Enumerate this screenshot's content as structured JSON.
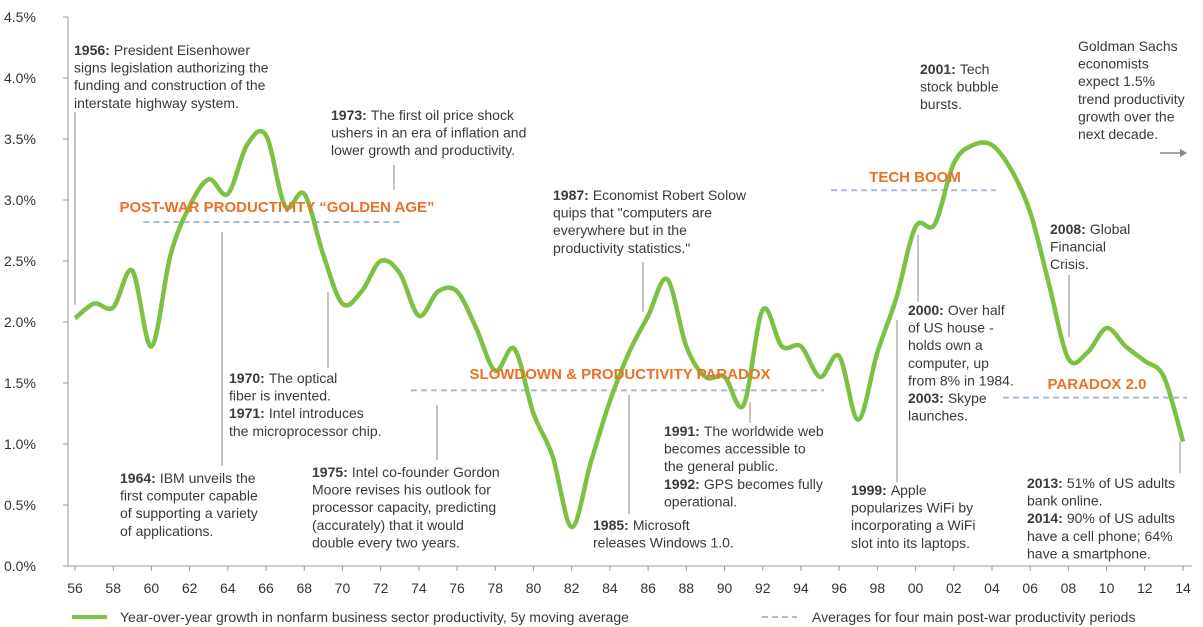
{
  "chart_data": {
    "type": "line",
    "x": [
      1956,
      1957,
      1958,
      1959,
      1960,
      1961,
      1962,
      1963,
      1964,
      1965,
      1966,
      1967,
      1968,
      1969,
      1970,
      1971,
      1972,
      1973,
      1974,
      1975,
      1976,
      1977,
      1978,
      1979,
      1980,
      1981,
      1982,
      1983,
      1984,
      1985,
      1986,
      1987,
      1988,
      1989,
      1990,
      1991,
      1992,
      1993,
      1994,
      1995,
      1996,
      1997,
      1998,
      1999,
      2000,
      2001,
      2002,
      2003,
      2004,
      2005,
      2006,
      2007,
      2008,
      2009,
      2010,
      2011,
      2012,
      2013,
      2014
    ],
    "series": [
      {
        "name": "Year-over-year growth in nonfarm business sector productivity, 5y moving average",
        "color": "#7cc242",
        "values": [
          2.03,
          2.15,
          2.12,
          2.42,
          1.8,
          2.55,
          2.95,
          3.17,
          3.05,
          3.45,
          3.53,
          2.95,
          3.05,
          2.55,
          2.15,
          2.25,
          2.5,
          2.4,
          2.05,
          2.25,
          2.25,
          1.95,
          1.6,
          1.78,
          1.25,
          0.9,
          0.32,
          0.85,
          1.35,
          1.75,
          2.05,
          2.35,
          1.8,
          1.55,
          1.55,
          1.32,
          2.1,
          1.8,
          1.8,
          1.55,
          1.72,
          1.2,
          1.75,
          2.2,
          2.78,
          2.8,
          3.3,
          3.45,
          3.45,
          3.25,
          2.9,
          2.3,
          1.7,
          1.75,
          1.95,
          1.8,
          1.68,
          1.55,
          1.02
        ]
      }
    ],
    "averages_name": "Averages for four main post-war productivity periods",
    "averages_color": "#a9b9da",
    "averages": [
      {
        "label": "POST-WAR PRODUCTIVITY “GOLDEN AGE”",
        "start": 1960,
        "end": 1973,
        "value": 2.82
      },
      {
        "label": "SLOWDOWN & PRODUCTIVITY PARADOX",
        "start": 1974,
        "end": 1995,
        "value": 1.44
      },
      {
        "label": "TECH BOOM",
        "start": 1996,
        "end": 2004,
        "value": 3.08
      },
      {
        "label": "PARADOX 2.0",
        "start": 2005,
        "end": 2014,
        "value": 1.38
      }
    ],
    "xlim": [
      1956,
      2014
    ],
    "ylim": [
      0,
      4.5
    ],
    "xticks": [
      {
        "value": 1956,
        "label": "56"
      },
      {
        "value": 1958,
        "label": "58"
      },
      {
        "value": 1960,
        "label": "60"
      },
      {
        "value": 1962,
        "label": "62"
      },
      {
        "value": 1964,
        "label": "64"
      },
      {
        "value": 1966,
        "label": "66"
      },
      {
        "value": 1968,
        "label": "68"
      },
      {
        "value": 1970,
        "label": "70"
      },
      {
        "value": 1972,
        "label": "72"
      },
      {
        "value": 1974,
        "label": "74"
      },
      {
        "value": 1976,
        "label": "76"
      },
      {
        "value": 1978,
        "label": "78"
      },
      {
        "value": 1980,
        "label": "80"
      },
      {
        "value": 1982,
        "label": "82"
      },
      {
        "value": 1984,
        "label": "84"
      },
      {
        "value": 1986,
        "label": "86"
      },
      {
        "value": 1988,
        "label": "88"
      },
      {
        "value": 1990,
        "label": "90"
      },
      {
        "value": 1992,
        "label": "92"
      },
      {
        "value": 1994,
        "label": "94"
      },
      {
        "value": 1996,
        "label": "96"
      },
      {
        "value": 1998,
        "label": "98"
      },
      {
        "value": 2000,
        "label": "00"
      },
      {
        "value": 2002,
        "label": "02"
      },
      {
        "value": 2004,
        "label": "04"
      },
      {
        "value": 2006,
        "label": "06"
      },
      {
        "value": 2008,
        "label": "08"
      },
      {
        "value": 2010,
        "label": "10"
      },
      {
        "value": 2012,
        "label": "12"
      },
      {
        "value": 2014,
        "label": "14"
      }
    ],
    "yticks": [
      {
        "value": 0,
        "label": "0.0%"
      },
      {
        "value": 0.5,
        "label": "0.5%"
      },
      {
        "value": 1,
        "label": "1.0%"
      },
      {
        "value": 1.5,
        "label": "1.5%"
      },
      {
        "value": 2,
        "label": "2.0%"
      },
      {
        "value": 2.5,
        "label": "2.5%"
      },
      {
        "value": 3,
        "label": "3.0%"
      },
      {
        "value": 3.5,
        "label": "3.5%"
      },
      {
        "value": 4,
        "label": "4.0%"
      },
      {
        "value": 4.5,
        "label": "4.5%"
      }
    ],
    "annotations": [
      {
        "lines": [
          {
            "bold": "1956:",
            "text": "President Eisenhower"
          },
          {
            "text": "signs legislation authorizing the"
          },
          {
            "text": "funding and construction of the"
          },
          {
            "text": "interstate highway system."
          }
        ]
      },
      {
        "lines": [
          {
            "bold": "1973:",
            "text": "The first oil price shock"
          },
          {
            "text": "ushers in an era of inflation and"
          },
          {
            "text": "lower growth and productivity."
          }
        ]
      },
      {
        "lines": [
          {
            "bold": "1987:",
            "text": "Economist Robert Solow"
          },
          {
            "text": "quips that \"computers are"
          },
          {
            "text": "everywhere but in  the"
          },
          {
            "text": "productivity statistics.\""
          }
        ]
      },
      {
        "lines": [
          {
            "bold": "2001:",
            "text": "Tech"
          },
          {
            "text": "stock bubble"
          },
          {
            "text": "bursts."
          }
        ]
      },
      {
        "lines": [
          {
            "text": "Goldman Sachs"
          },
          {
            "text": "economists"
          },
          {
            "text": "expect 1.5%"
          },
          {
            "text": "trend productivity"
          },
          {
            "text": "growth over the"
          },
          {
            "text": "next decade."
          }
        ]
      },
      {
        "lines": [
          {
            "bold": "2008:",
            "text": "Global"
          },
          {
            "text": "Financial"
          },
          {
            "text": "Crisis."
          }
        ]
      },
      {
        "lines": [
          {
            "bold": "2000:",
            "text": "Over half"
          },
          {
            "text": "of US house -"
          },
          {
            "text": "holds own a"
          },
          {
            "text": "computer, up"
          },
          {
            "text": "from 8% in 1984."
          },
          {
            "bold": "2003:",
            "text": "Skype"
          },
          {
            "text": "launches."
          }
        ]
      },
      {
        "lines": [
          {
            "bold": "1970:",
            "text": "The optical"
          },
          {
            "text": "fiber is invented."
          },
          {
            "bold": "1971:",
            "text": "Intel introduces"
          },
          {
            "text": "the microprocessor chip."
          }
        ]
      },
      {
        "lines": [
          {
            "bold": "1964:",
            "text": "IBM unveils the"
          },
          {
            "text": "first computer capable"
          },
          {
            "text": "of supporting a variety"
          },
          {
            "text": "of applications."
          }
        ]
      },
      {
        "lines": [
          {
            "bold": "1975:",
            "text": "Intel co-founder Gordon"
          },
          {
            "text": "Moore revises his outlook for"
          },
          {
            "text": "processor capacity, predicting"
          },
          {
            "text": "(accurately) that it would"
          },
          {
            "text": "double every two years."
          }
        ]
      },
      {
        "lines": [
          {
            "bold": "1985:",
            "text": "Microsoft"
          },
          {
            "text": "releases Windows 1.0."
          }
        ]
      },
      {
        "lines": [
          {
            "bold": "1991:",
            "text": "The worldwide web"
          },
          {
            "text": "becomes accessible to"
          },
          {
            "text": "the general public."
          },
          {
            "bold": "1992:",
            "text": "GPS becomes fully"
          },
          {
            "text": "operational."
          }
        ]
      },
      {
        "lines": [
          {
            "bold": "1999:",
            "text": "Apple"
          },
          {
            "text": "popularizes WiFi by"
          },
          {
            "text": "incorporating a WiFi"
          },
          {
            "text": "slot into its laptops."
          }
        ]
      },
      {
        "lines": [
          {
            "bold": "2013:",
            "text": "51% of US adults"
          },
          {
            "text": "bank online."
          },
          {
            "bold": "2014:",
            "text": "90% of US adults"
          },
          {
            "text": "have a cell phone; 64%"
          },
          {
            "text": "have a smartphone."
          }
        ]
      }
    ]
  }
}
